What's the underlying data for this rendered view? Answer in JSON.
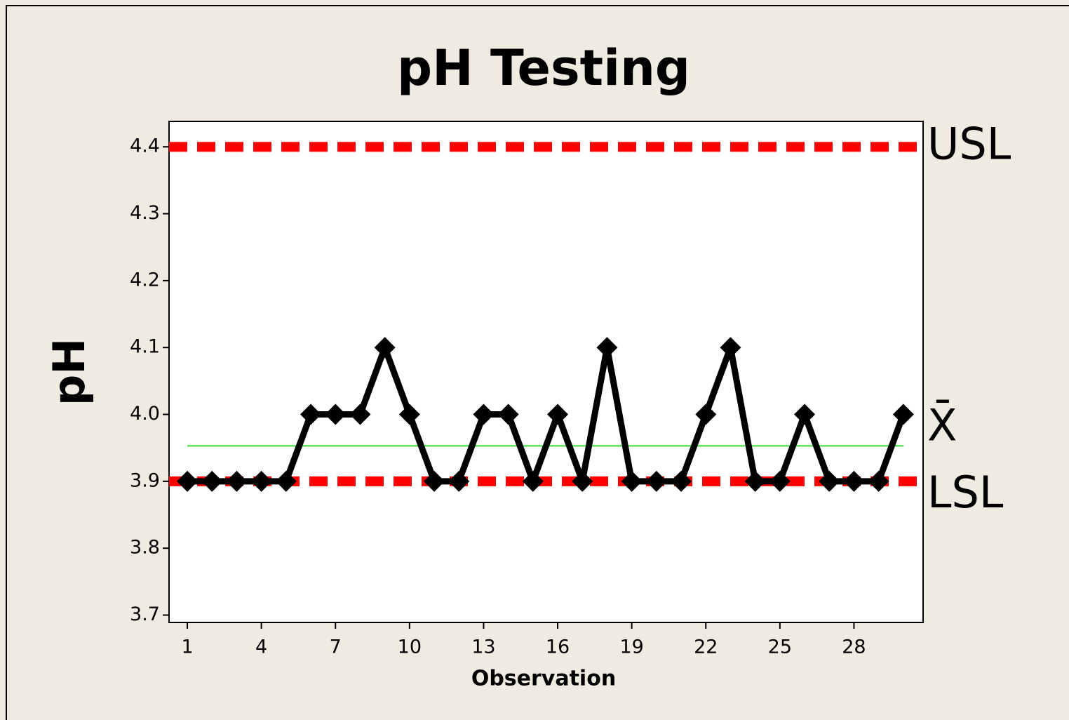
{
  "chart_data": {
    "type": "line",
    "title": "pH Testing",
    "xlabel": "Observation",
    "ylabel": "pH",
    "x": [
      1,
      2,
      3,
      4,
      5,
      6,
      7,
      8,
      9,
      10,
      11,
      12,
      13,
      14,
      15,
      16,
      17,
      18,
      19,
      20,
      21,
      22,
      23,
      24,
      25,
      26,
      27,
      28,
      29,
      30
    ],
    "values": [
      3.9,
      3.9,
      3.9,
      3.9,
      3.9,
      4.0,
      4.0,
      4.0,
      4.1,
      4.0,
      3.9,
      3.9,
      4.0,
      4.0,
      3.9,
      4.0,
      3.9,
      4.1,
      3.9,
      3.9,
      3.9,
      4.0,
      4.1,
      3.9,
      3.9,
      4.0,
      3.9,
      3.9,
      3.9,
      4.0
    ],
    "color": "#000000",
    "xlim": [
      0.26,
      30.8
    ],
    "ylim": [
      3.689,
      4.438
    ],
    "xticks": [
      1,
      4,
      7,
      10,
      13,
      16,
      19,
      22,
      25,
      28
    ],
    "yticks": [
      3.7,
      3.8,
      3.9,
      {
        "value": 4,
        "label": "4.0"
      },
      4.1,
      4.2,
      4.3,
      4.4
    ],
    "reference_lines": [
      {
        "label": "USL",
        "value": 4.4,
        "color": "#ff0000",
        "style": "dashed"
      },
      {
        "label": "X̄",
        "value": 3.953,
        "color": "#33dd33",
        "style": "solid"
      },
      {
        "label": "LSL",
        "value": 3.9,
        "color": "#ff0000",
        "style": "dashed"
      }
    ]
  }
}
